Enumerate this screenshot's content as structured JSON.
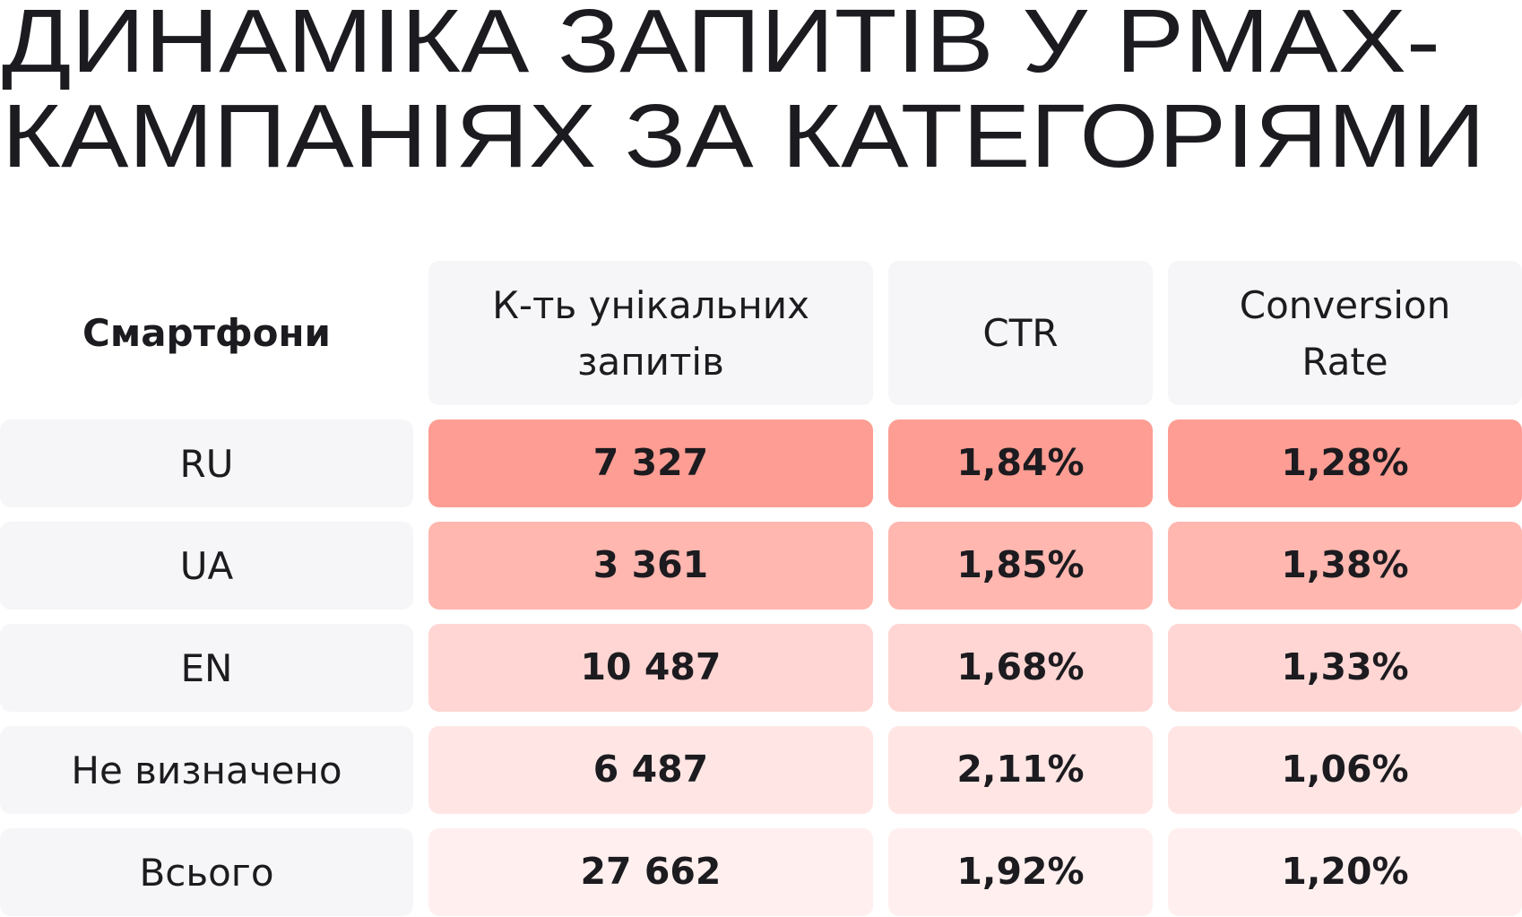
{
  "title": [
    "ДИНАМІКА ЗАПИТІВ У PMAX-",
    "КАМПАНІЯХ ЗА КАТЕГОРІЯМИ"
  ],
  "table": {
    "header": [
      "Смартфони",
      "К-ть унікальних запитів",
      "CTR",
      "Conversion Rate"
    ],
    "rows": [
      [
        "RU",
        "7 327",
        "1,84%",
        "1,28%"
      ],
      [
        "UA",
        "3 361",
        "1,85%",
        "1,38%"
      ],
      [
        "EN",
        "10 487",
        "1,68%",
        "1,33%"
      ],
      [
        "Не визначено",
        "6 487",
        "2,11%",
        "1,06%"
      ],
      [
        "Всього",
        "27 662",
        "1,92%",
        "1,20%"
      ]
    ]
  }
}
